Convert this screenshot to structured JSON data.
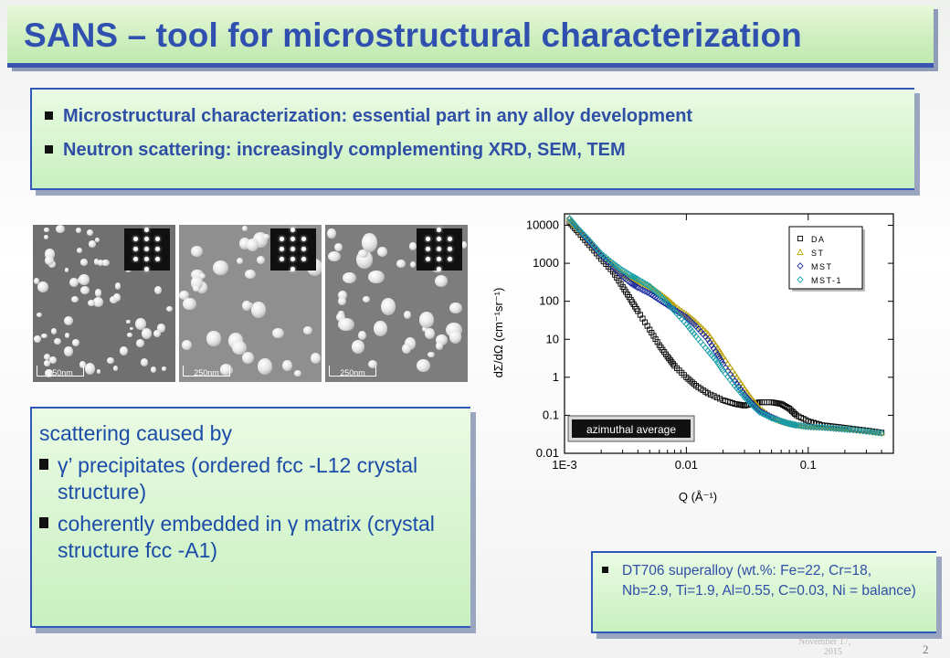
{
  "title": "SANS  – tool for microstructural characterization",
  "top_bullets": [
    "Microstructural characterization:  essential part in any alloy development",
    "Neutron scattering: increasingly complementing XRD, SEM, TEM"
  ],
  "micrographs": {
    "scale_labels": [
      "250nm",
      "250nm",
      "250nm"
    ]
  },
  "scattering": {
    "heading": "scattering caused by",
    "bullets": [
      "γ’ precipitates (ordered fcc -L12 crystal structure)",
      "coherently embedded in γ matrix (crystal structure fcc -A1)"
    ]
  },
  "alloy_note": "DT706 superalloy (wt.%: Fe=22, Cr=18, Nb=2.9, Ti=1.9, Al=0.55, C=0.03, Ni = balance)",
  "footer": {
    "date_line1": "November 17,",
    "date_line2": "2015",
    "page_number": "2"
  },
  "colors": {
    "title_blue": "#3050b0",
    "border_blue": "#2f58b8",
    "DA": "#000000",
    "ST": "#b8a000",
    "MST": "#1a2aa0",
    "MST-1": "#18a0a8"
  },
  "chart_data": {
    "type": "scatter",
    "xlabel": "Q (Å⁻¹)",
    "ylabel": "dΣ/dΩ  (cm⁻¹sr⁻¹)",
    "xscale": "log",
    "yscale": "log",
    "xlim": [
      0.001,
      0.5
    ],
    "ylim": [
      0.01,
      20000
    ],
    "x_ticks": [
      "1E-3",
      "0.01",
      "0.1"
    ],
    "y_ticks": [
      "0.01",
      "0.1",
      "1",
      "10",
      "100",
      "1000",
      "10000"
    ],
    "legend_position": "top-right",
    "annotation": "azimuthal average",
    "series": [
      {
        "name": "DA",
        "marker": "square",
        "x": [
          0.0011,
          0.0013,
          0.0016,
          0.002,
          0.0025,
          0.003,
          0.0035,
          0.004,
          0.005,
          0.006,
          0.007,
          0.008,
          0.01,
          0.012,
          0.015,
          0.02,
          0.025,
          0.03,
          0.035,
          0.04,
          0.05,
          0.06,
          0.07,
          0.08,
          0.1,
          0.13,
          0.17,
          0.22,
          0.3,
          0.4
        ],
        "y": [
          12000,
          6500,
          3000,
          1300,
          600,
          240,
          110,
          55,
          18,
          7,
          3.5,
          2,
          1,
          0.6,
          0.38,
          0.25,
          0.2,
          0.18,
          0.2,
          0.22,
          0.22,
          0.2,
          0.15,
          0.1,
          0.07,
          0.055,
          0.05,
          0.045,
          0.04,
          0.035
        ]
      },
      {
        "name": "ST",
        "marker": "triangle",
        "x": [
          0.0011,
          0.0013,
          0.0016,
          0.002,
          0.0025,
          0.003,
          0.0035,
          0.004,
          0.005,
          0.006,
          0.007,
          0.008,
          0.01,
          0.012,
          0.015,
          0.018,
          0.02,
          0.025,
          0.03,
          0.035,
          0.04,
          0.05,
          0.06,
          0.07,
          0.08,
          0.1,
          0.13,
          0.17,
          0.22,
          0.3,
          0.4
        ],
        "y": [
          15000,
          8000,
          3800,
          1700,
          900,
          550,
          400,
          330,
          240,
          160,
          110,
          75,
          45,
          28,
          14,
          6,
          3.5,
          1.2,
          0.5,
          0.25,
          0.15,
          0.09,
          0.07,
          0.06,
          0.055,
          0.05,
          0.048,
          0.045,
          0.042,
          0.038,
          0.034
        ]
      },
      {
        "name": "MST",
        "marker": "diamond",
        "x": [
          0.0011,
          0.0013,
          0.0016,
          0.002,
          0.0025,
          0.003,
          0.0035,
          0.004,
          0.005,
          0.006,
          0.007,
          0.008,
          0.01,
          0.012,
          0.015,
          0.018,
          0.02,
          0.025,
          0.03,
          0.035,
          0.04,
          0.05,
          0.06,
          0.07,
          0.08,
          0.1,
          0.13,
          0.17,
          0.22,
          0.3,
          0.4
        ],
        "y": [
          15000,
          7800,
          3600,
          1600,
          800,
          450,
          300,
          230,
          160,
          110,
          80,
          60,
          38,
          22,
          10,
          4,
          2.2,
          0.8,
          0.35,
          0.2,
          0.13,
          0.09,
          0.07,
          0.06,
          0.055,
          0.05,
          0.048,
          0.045,
          0.042,
          0.038,
          0.034
        ]
      },
      {
        "name": "MST-1",
        "marker": "diamond",
        "x": [
          0.0011,
          0.0013,
          0.0016,
          0.002,
          0.0025,
          0.003,
          0.0035,
          0.004,
          0.005,
          0.006,
          0.007,
          0.008,
          0.01,
          0.012,
          0.015,
          0.018,
          0.02,
          0.025,
          0.03,
          0.035,
          0.04,
          0.05,
          0.06,
          0.07,
          0.08,
          0.1,
          0.13,
          0.17,
          0.22,
          0.3,
          0.4
        ],
        "y": [
          15000,
          8000,
          4000,
          1800,
          1000,
          650,
          480,
          380,
          250,
          150,
          90,
          55,
          25,
          12,
          5,
          2.5,
          1.5,
          0.6,
          0.3,
          0.18,
          0.12,
          0.085,
          0.07,
          0.06,
          0.055,
          0.05,
          0.048,
          0.045,
          0.042,
          0.038,
          0.034
        ]
      }
    ]
  }
}
